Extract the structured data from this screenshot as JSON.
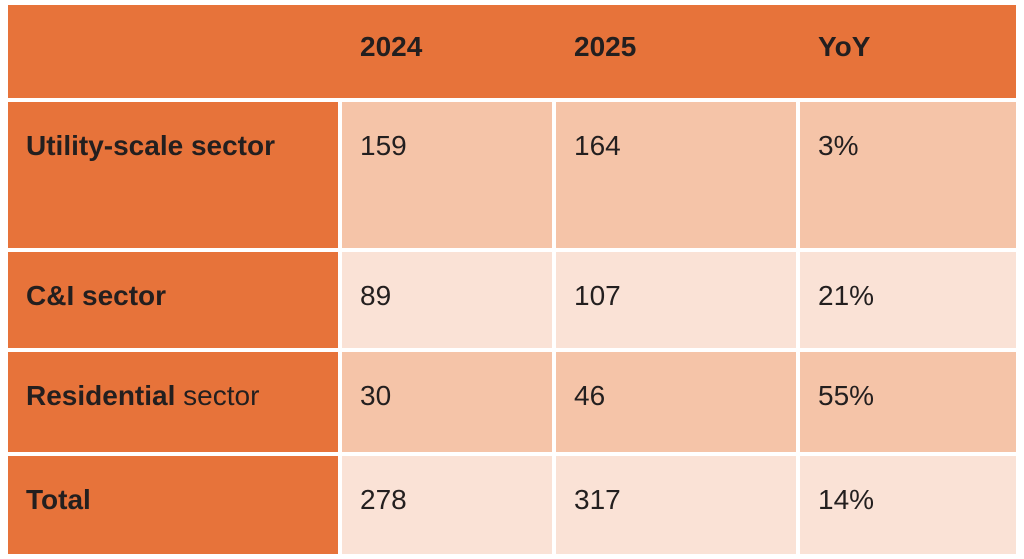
{
  "chart_data": {
    "type": "table",
    "columns": [
      "",
      "2024",
      "2025",
      "YoY"
    ],
    "rows": [
      {
        "label_bold": "Utility-scale sector",
        "label_regular": "",
        "values": [
          "159",
          "164",
          "3%"
        ]
      },
      {
        "label_bold": "C&I sector",
        "label_regular": "",
        "values": [
          "89",
          "107",
          "21%"
        ]
      },
      {
        "label_bold": "Residential",
        "label_regular": " sector",
        "values": [
          "30",
          "46",
          "55%"
        ]
      },
      {
        "label_bold": "Total",
        "label_regular": "",
        "values": [
          "278",
          "317",
          "14%"
        ]
      }
    ],
    "layout": {
      "banding": [
        "dark",
        "light",
        "dark",
        "light"
      ],
      "header_style": "solid orange bar, bold dark text",
      "grid": "white gridlines between cells"
    }
  },
  "colors": {
    "header_bg": "#E7733A",
    "label_column_bg": "#E7733A",
    "band_dark": "#F5C4A8",
    "band_light": "#FAE2D6",
    "grid_line": "#FFFFFF",
    "text": "#231F1F"
  }
}
